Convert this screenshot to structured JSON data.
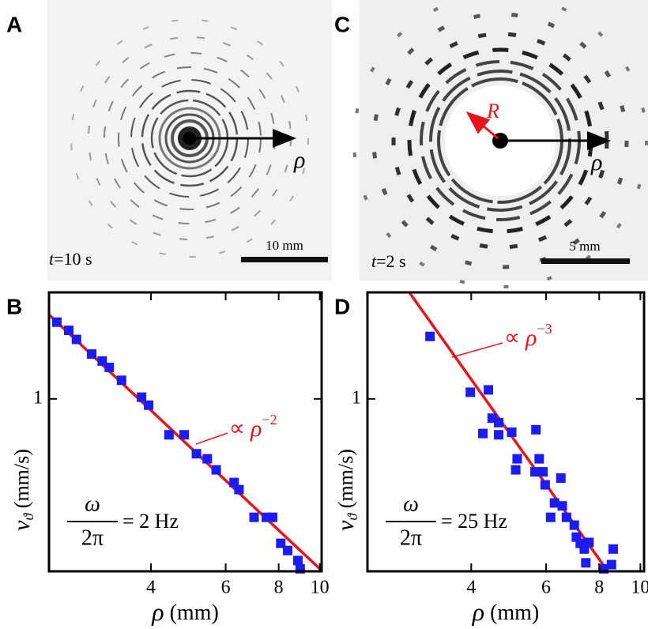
{
  "panels": {
    "A": {
      "label": "A",
      "arrow_label": "ρ",
      "time": {
        "var": "t",
        "rest": "=10 s"
      },
      "scale_bar": "10 mm"
    },
    "C": {
      "label": "C",
      "arrow_label": "ρ",
      "radius_label": "R",
      "time": {
        "var": "t",
        "rest": "=2 s"
      },
      "scale_bar": "5 mm"
    }
  },
  "chart_data": [
    {
      "type": "scatter",
      "label": "B",
      "xscale": "log",
      "yscale": "log",
      "xlim": [
        2.3,
        10.1
      ],
      "ylim": [
        0.136,
        3.43
      ],
      "xticks": [
        4,
        6,
        8,
        10
      ],
      "yticks": [
        1
      ],
      "x_label": {
        "symbol": "ρ",
        "unit": " (mm)"
      },
      "y_label": {
        "symbol": "v",
        "sub": "ϑ",
        "unit": " (mm/s)"
      },
      "frequency": {
        "numerator": "ω",
        "denominator": "2π",
        "rest": "= 2 Hz"
      },
      "annotation": {
        "text": "∝ ",
        "symbol": "ρ",
        "exponent": "−2"
      },
      "series": [
        {
          "color": "#1c1cf0",
          "x": [
            2.4,
            2.56,
            2.67,
            2.9,
            3.07,
            3.19,
            3.41,
            3.8,
            3.95,
            4.41,
            4.79,
            5.12,
            5.43,
            5.7,
            6.28,
            6.45,
            7.0,
            7.48,
            7.74,
            8.09,
            8.4,
            8.88,
            8.99
          ],
          "values": [
            2.43,
            2.21,
            1.99,
            1.68,
            1.55,
            1.44,
            1.24,
            1.02,
            0.93,
            0.66,
            0.66,
            0.53,
            0.5,
            0.44,
            0.38,
            0.35,
            0.254,
            0.254,
            0.254,
            0.188,
            0.173,
            0.154,
            0.14
          ]
        }
      ],
      "fit": {
        "color": "#e8141c",
        "x": [
          2.3,
          10.0
        ],
        "values": [
          2.65,
          0.14
        ]
      }
    },
    {
      "type": "scatter",
      "label": "D",
      "xscale": "log",
      "yscale": "log",
      "xlim": [
        2.28,
        10.2
      ],
      "ylim": [
        0.136,
        3.43
      ],
      "xticks": [
        4,
        6,
        8,
        10
      ],
      "yticks": [
        1
      ],
      "x_label": {
        "symbol": "ρ",
        "unit": " (mm)"
      },
      "y_label": {
        "symbol": "v",
        "sub": "ϑ",
        "unit": " (mm/s)"
      },
      "frequency": {
        "numerator": "ω",
        "denominator": "2π",
        "rest": "= 25 Hz"
      },
      "annotation": {
        "text": "∝ ",
        "symbol": "ρ",
        "exponent": "−3"
      },
      "series": [
        {
          "color": "#1c1cf0",
          "x": [
            3.2,
            3.98,
            4.39,
            4.26,
            4.48,
            4.64,
            4.64,
            4.98,
            5.13,
            5.09,
            5.68,
            5.78,
            5.65,
            5.9,
            5.97,
            6.28,
            6.5,
            6.55,
            6.15,
            6.7,
            6.99,
            7.07,
            7.22,
            7.38,
            7.44,
            7.57,
            8.2,
            8.63,
            8.55
          ],
          "values": [
            2.06,
            1.08,
            1.11,
            0.67,
            0.8,
            0.76,
            0.66,
            0.68,
            0.5,
            0.44,
            0.7,
            0.5,
            0.43,
            0.43,
            0.37,
            0.3,
            0.4,
            0.29,
            0.254,
            0.254,
            0.232,
            0.202,
            0.188,
            0.176,
            0.15,
            0.19,
            0.14,
            0.176,
            0.147
          ]
        }
      ],
      "fit": {
        "color": "#e8141c",
        "x": [
          2.86,
          8.38
        ],
        "values": [
          3.43,
          0.136
        ]
      }
    }
  ]
}
